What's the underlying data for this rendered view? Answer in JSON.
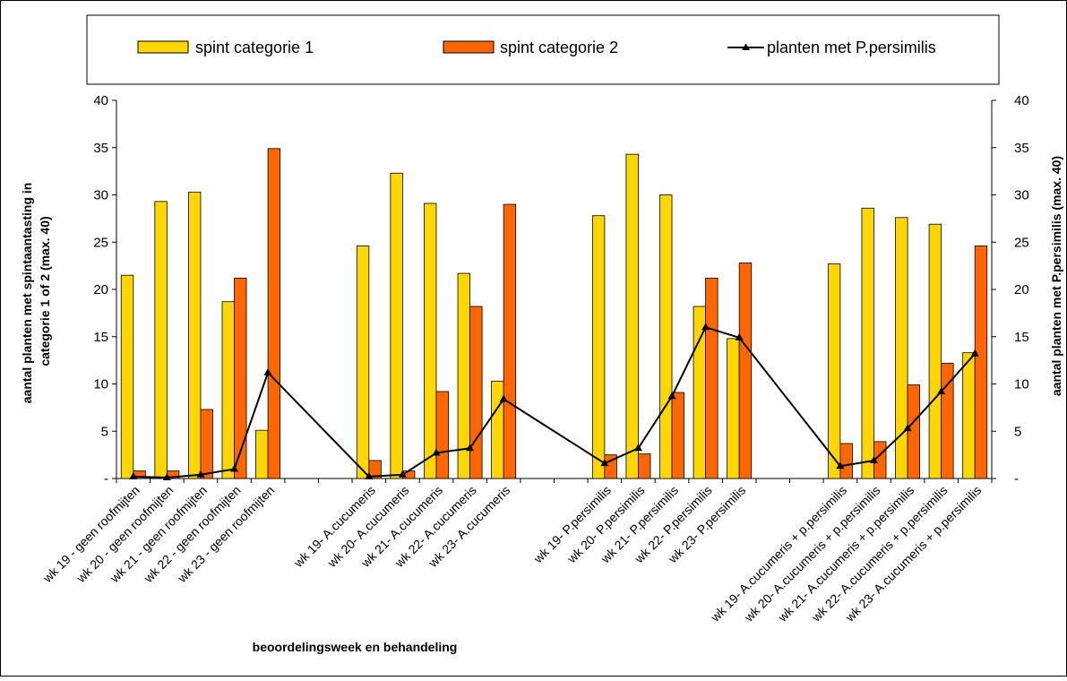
{
  "chart_data": {
    "type": "bar",
    "categories": [
      "wk 19 - geen roofmijten",
      "wk 20 - geen roofmijten",
      "wk 21 - geen roofmijten",
      "wk 22 - geen roofmijten",
      "wk 23 - geen roofmijten",
      "",
      "",
      "wk 19- A.cucumeris",
      "wk 20- A.cucumeris",
      "wk 21- A.cucumeris",
      "wk 22- A.cucumeris",
      "wk 23- A.cucumeris",
      "",
      "",
      "wk 19- P.persimilis",
      "wk 20- P.persimilis",
      "wk 21- P.persimilis",
      "wk 22- P.persimilis",
      "wk 23- P.persimilis",
      "",
      "",
      "wk 19- A.cucumeris + p.persimilis",
      "wk 20- A.cucumeris + p.persimilis",
      "wk 21- A.cucumeris + p.persimilis",
      "wk 22- A.cucumeris + p.persimilis",
      "wk 23- A.cucumeris + p.persimilis"
    ],
    "series": [
      {
        "name": "spint categorie 1",
        "type": "bar",
        "axis": "left",
        "color": "#ffd700",
        "values": [
          21.5,
          29.3,
          30.3,
          18.7,
          5.1,
          null,
          null,
          24.6,
          32.3,
          29.1,
          21.7,
          10.3,
          null,
          null,
          27.8,
          34.3,
          30.0,
          18.2,
          14.8,
          null,
          null,
          22.7,
          28.6,
          27.6,
          26.9,
          13.3
        ]
      },
      {
        "name": "spint categorie 2",
        "type": "bar",
        "axis": "left",
        "color": "#ff6600",
        "values": [
          0.8,
          0.8,
          7.3,
          21.2,
          34.9,
          null,
          null,
          1.9,
          0.8,
          9.2,
          18.2,
          29.0,
          null,
          null,
          2.5,
          2.6,
          9.1,
          21.2,
          22.8,
          null,
          null,
          3.7,
          3.9,
          9.9,
          12.2,
          24.6
        ]
      },
      {
        "name": "planten met P.persimilis",
        "type": "line",
        "axis": "right",
        "color": "#000000",
        "values": [
          0.2,
          0.1,
          0.4,
          1.0,
          11.2,
          null,
          null,
          0.2,
          0.4,
          2.7,
          3.2,
          8.4,
          null,
          null,
          1.6,
          3.2,
          8.7,
          16.0,
          14.9,
          null,
          null,
          1.3,
          1.9,
          5.3,
          9.2,
          13.2
        ]
      }
    ],
    "y_left": {
      "label": [
        "aantal planten met spintaantasting in",
        "categorie 1 of 2 (max. 40)"
      ],
      "ylim": [
        0,
        40
      ],
      "ticks": [
        "-",
        "5",
        "10",
        "15",
        "20",
        "25",
        "30",
        "35",
        "40"
      ]
    },
    "y_right": {
      "label": "aantal planten met P.persimilis (max. 40)",
      "ylim": [
        0,
        40
      ],
      "ticks": [
        "-",
        "5",
        "10",
        "15",
        "20",
        "25",
        "30",
        "35",
        "40"
      ]
    },
    "xlabel": "beoordelingsweek en  behandeling",
    "legend": {
      "position": "top",
      "entries": [
        "spint categorie 1",
        "spint categorie 2",
        "planten met P.persimilis"
      ]
    },
    "grid": false
  }
}
